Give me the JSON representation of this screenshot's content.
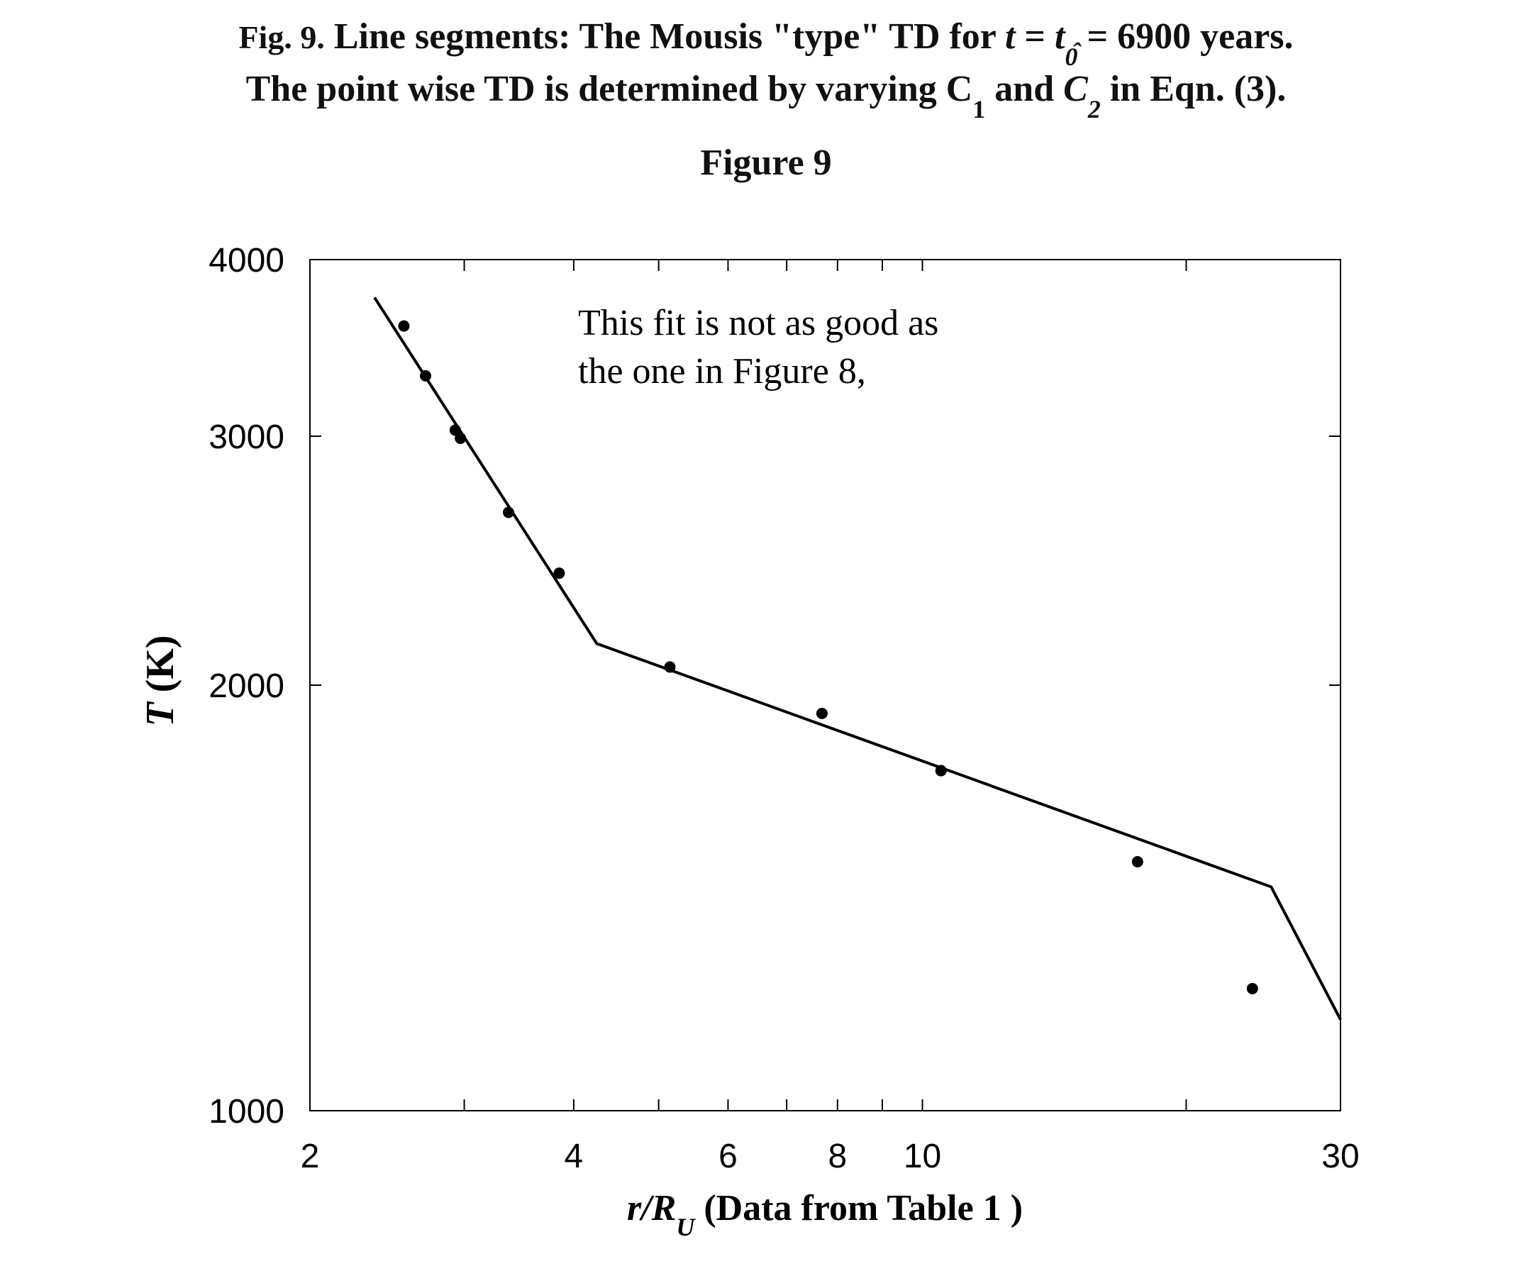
{
  "caption": {
    "line1_label": "Fig. 9.",
    "line1_text": " Line segments: The Mousis \"type\" TD for ",
    "line1_t": "t",
    "line1_eq": " = ",
    "line1_t0": "t",
    "line1_sub0": "0",
    "line1_tail": " = 6900 years.",
    "line2_text": "The point wise TD is determined by varying C",
    "line2_sub1": "1",
    "line2_mid": " and ",
    "line2_c2": "C",
    "line2_hat": "ˆ",
    "line2_sub2": "2",
    "line2_tail": " in Eqn. (3)."
  },
  "figure_title": "Figure 9",
  "chart_data": {
    "type": "scatter",
    "title": "Figure 9",
    "xlabel_main": "r/R",
    "xlabel_sub": "U",
    "xlabel_tail": " (Data from Table 1 )",
    "ylabel_italic": "T",
    "ylabel_tail": " (K)",
    "x_scale": "log",
    "y_scale": "log",
    "xlim": [
      2,
      30
    ],
    "ylim": [
      1000,
      4000
    ],
    "x_tick_labels": [
      {
        "value": 2,
        "label": "2"
      },
      {
        "value": 4,
        "label": "4"
      },
      {
        "value": 6,
        "label": "6"
      },
      {
        "value": 8,
        "label": "8"
      },
      {
        "value": 10,
        "label": "10"
      },
      {
        "value": 30,
        "label": "30"
      }
    ],
    "x_minor_ticks": [
      3,
      5,
      7,
      9,
      20
    ],
    "y_tick_labels": [
      {
        "value": 1000,
        "label": "1000"
      },
      {
        "value": 2000,
        "label": "2000"
      },
      {
        "value": 3000,
        "label": "3000"
      },
      {
        "value": 4000,
        "label": "4000"
      }
    ],
    "grid": false,
    "series": [
      {
        "kind": "points",
        "x": [
          2.56,
          2.71,
          2.93,
          2.97,
          3.37,
          3.85,
          5.15,
          7.68,
          10.5,
          17.6,
          23.8
        ],
        "y": [
          3590,
          3310,
          3030,
          2990,
          2650,
          2400,
          2060,
          1910,
          1740,
          1500,
          1220
        ]
      },
      {
        "kind": "line",
        "x": [
          2.37,
          4.25,
          25.0,
          30.0
        ],
        "y": [
          3760,
          2140,
          1440,
          1160
        ]
      }
    ],
    "annotation": {
      "line1": "This fit is not as good as",
      "line2": "the one in Figure 8,"
    },
    "colors": {
      "ink": "#000000",
      "background": "#ffffff"
    }
  }
}
